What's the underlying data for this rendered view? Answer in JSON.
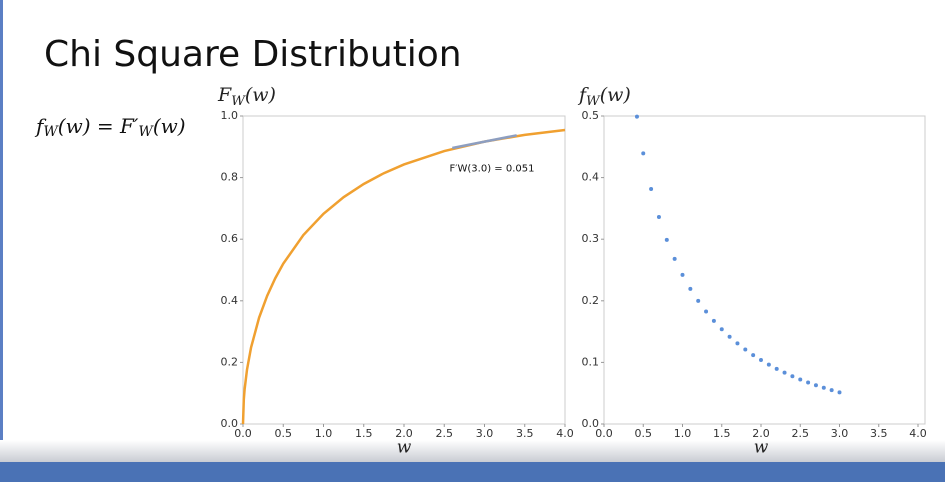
{
  "slide_title": "Chi Square Distribution",
  "formula": [
    "f",
    "W",
    "(w) = F′",
    "W",
    "(w)"
  ],
  "chart_data": [
    {
      "type": "line",
      "ylabel": [
        "F",
        "W",
        "(w)"
      ],
      "xlabel": "w",
      "x": [
        0,
        0.01,
        0.02,
        0.05,
        0.1,
        0.2,
        0.3,
        0.4,
        0.5,
        0.75,
        1.0,
        1.25,
        1.5,
        1.75,
        2.0,
        2.5,
        3.0,
        3.5,
        4.0
      ],
      "values": [
        0,
        0.0797,
        0.1125,
        0.1769,
        0.2482,
        0.3453,
        0.4161,
        0.4729,
        0.5205,
        0.6135,
        0.6827,
        0.7364,
        0.7793,
        0.8143,
        0.8427,
        0.8862,
        0.9167,
        0.9387,
        0.9545
      ],
      "color": "#f0a030",
      "tangent": {
        "x": [
          2.6,
          3.4
        ],
        "values": [
          0.8961,
          0.9373
        ],
        "color": "#8d9ec0"
      },
      "annotation": "F′W(3.0) = 0.051",
      "xlim": [
        0,
        4.0
      ],
      "ylim": [
        0,
        1.0
      ],
      "xticks": [
        {
          "value": 0,
          "label": "0.0"
        },
        0.5,
        {
          "value": 1,
          "label": "1.0"
        },
        1.5,
        {
          "value": 2,
          "label": "2.0"
        },
        2.5,
        {
          "value": 3,
          "label": "3.0"
        },
        3.5,
        {
          "value": 4,
          "label": "4.0"
        }
      ],
      "yticks": [
        {
          "value": 0,
          "label": "0.0"
        },
        0.2,
        0.4,
        0.6,
        0.8,
        {
          "value": 1,
          "label": "1.0"
        }
      ]
    },
    {
      "type": "scatter",
      "ylabel": [
        "f",
        "W",
        "(w)"
      ],
      "xlabel": "w",
      "x": [
        0.42,
        0.5,
        0.6,
        0.7,
        0.8,
        0.9,
        1.0,
        1.1,
        1.2,
        1.3,
        1.4,
        1.5,
        1.6,
        1.7,
        1.8,
        1.9,
        2.0,
        2.1,
        2.2,
        2.3,
        2.4,
        2.5,
        2.6,
        2.7,
        2.8,
        2.9,
        3.0
      ],
      "values": [
        0.499,
        0.4394,
        0.3815,
        0.336,
        0.299,
        0.2681,
        0.242,
        0.2194,
        0.1999,
        0.1827,
        0.1674,
        0.1539,
        0.1417,
        0.1308,
        0.1209,
        0.1119,
        0.1038,
        0.0963,
        0.0895,
        0.0833,
        0.0776,
        0.0723,
        0.0674,
        0.0629,
        0.0588,
        0.055,
        0.0514
      ],
      "color": "#5b8fd9",
      "xlim": [
        0,
        4.0
      ],
      "ylim": [
        0,
        0.5
      ],
      "xticks": [
        {
          "value": 0,
          "label": "0.0"
        },
        0.5,
        {
          "value": 1,
          "label": "1.0"
        },
        1.5,
        {
          "value": 2,
          "label": "2.0"
        },
        2.5,
        {
          "value": 3,
          "label": "3.0"
        },
        3.5,
        {
          "value": 4,
          "label": "4.0"
        }
      ],
      "yticks": [
        {
          "value": 0,
          "label": "0.0"
        },
        0.1,
        0.2,
        0.3,
        0.4,
        0.5
      ]
    }
  ]
}
